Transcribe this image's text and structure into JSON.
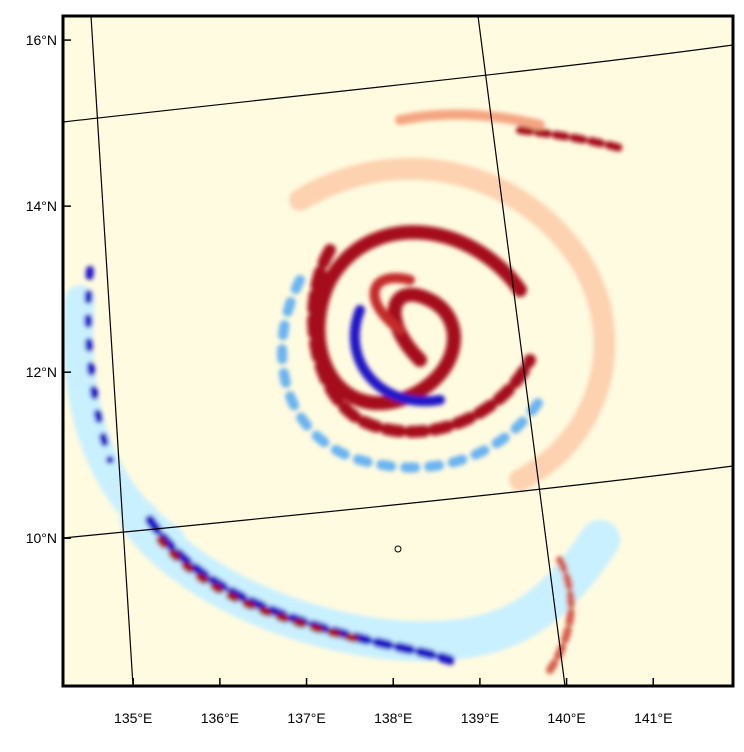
{
  "chart_data": {
    "type": "map",
    "xlim": [
      134.19,
      141.92
    ],
    "ylim": [
      8.22,
      16.29
    ],
    "xticks": [
      {
        "value": 135,
        "label": "135°E"
      },
      {
        "value": 136,
        "label": "136°E"
      },
      {
        "value": 137,
        "label": "137°E"
      },
      {
        "value": 138,
        "label": "138°E"
      },
      {
        "value": 139,
        "label": "139°E"
      },
      {
        "value": 140,
        "label": "140°E"
      },
      {
        "value": 141,
        "label": "141°E"
      }
    ],
    "yticks": [
      {
        "value": 10,
        "label": "10°N"
      },
      {
        "value": 12,
        "label": "12°N"
      },
      {
        "value": 14,
        "label": "14°N"
      },
      {
        "value": 16,
        "label": "16°N"
      }
    ]
  }
}
